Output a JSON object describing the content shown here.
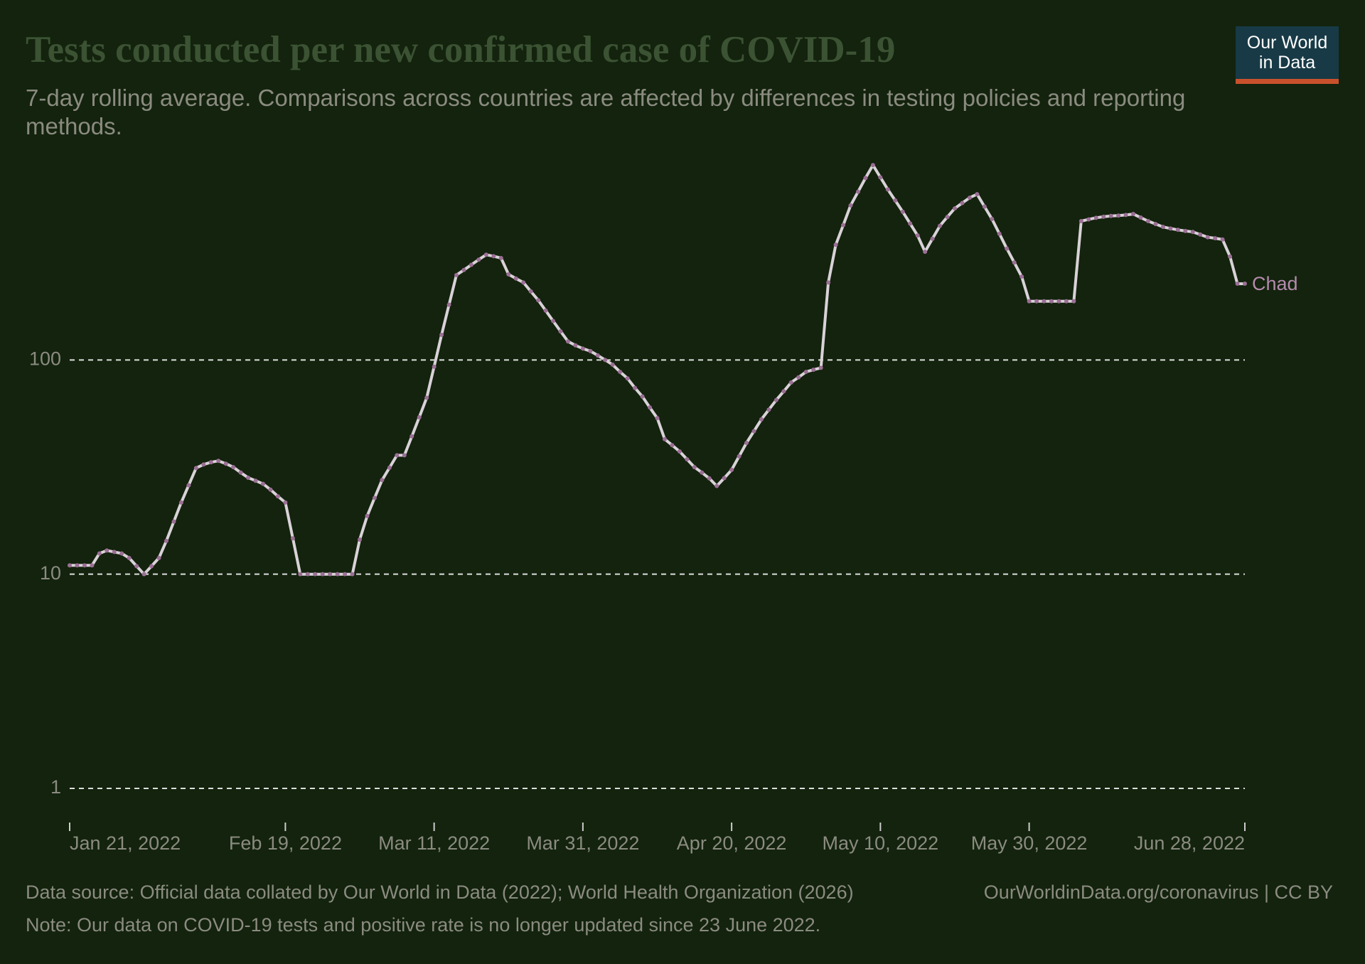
{
  "chart_data": {
    "type": "line",
    "title": "Tests conducted per new confirmed case of COVID-19",
    "subtitle": "7-day rolling average. Comparisons across countries are affected by differences in testing policies and reporting methods.",
    "logo": [
      "Our World",
      "in Data"
    ],
    "source": "Data source: Official data collated by Our World in Data (2022); World Health Organization (2026)",
    "note": "Note: Our data on COVID-19 tests and positive rate is no longer updated since 23 June 2022.",
    "credit": "OurWorldinData.org/coronavirus | CC BY",
    "log_scale": true,
    "grid": true,
    "ylim": [
      1,
      1000
    ],
    "yticks": [
      1,
      10,
      100
    ],
    "xlim": [
      "2022-01-21",
      "2022-06-28"
    ],
    "xticks": [
      {
        "value": "2022-01-21",
        "label": "Jan 21, 2022"
      },
      {
        "value": "2022-02-19",
        "label": "Feb 19, 2022"
      },
      {
        "value": "2022-03-11",
        "label": "Mar 11, 2022"
      },
      {
        "value": "2022-03-31",
        "label": "Mar 31, 2022"
      },
      {
        "value": "2022-04-20",
        "label": "Apr 20, 2022"
      },
      {
        "value": "2022-05-10",
        "label": "May 10, 2022"
      },
      {
        "value": "2022-05-30",
        "label": "May 30, 2022"
      },
      {
        "value": "2022-06-28",
        "label": "Jun 28, 2022"
      }
    ],
    "x": [
      "2022-01-21",
      "2022-01-22",
      "2022-01-23",
      "2022-01-24",
      "2022-01-25",
      "2022-01-26",
      "2022-01-27",
      "2022-01-28",
      "2022-01-29",
      "2022-01-30",
      "2022-01-31",
      "2022-02-01",
      "2022-02-02",
      "2022-02-03",
      "2022-02-04",
      "2022-02-05",
      "2022-02-06",
      "2022-02-07",
      "2022-02-08",
      "2022-02-09",
      "2022-02-10",
      "2022-02-11",
      "2022-02-12",
      "2022-02-13",
      "2022-02-14",
      "2022-02-15",
      "2022-02-16",
      "2022-02-17",
      "2022-02-18",
      "2022-02-19",
      "2022-02-20",
      "2022-02-21",
      "2022-02-22",
      "2022-02-23",
      "2022-02-24",
      "2022-02-25",
      "2022-02-26",
      "2022-02-27",
      "2022-02-28",
      "2022-03-01",
      "2022-03-02",
      "2022-03-03",
      "2022-03-04",
      "2022-03-05",
      "2022-03-06",
      "2022-03-07",
      "2022-03-08",
      "2022-03-09",
      "2022-03-10",
      "2022-03-11",
      "2022-03-12",
      "2022-03-13",
      "2022-03-14",
      "2022-03-15",
      "2022-03-16",
      "2022-03-17",
      "2022-03-18",
      "2022-03-19",
      "2022-03-20",
      "2022-03-21",
      "2022-03-22",
      "2022-03-23",
      "2022-03-24",
      "2022-03-25",
      "2022-03-26",
      "2022-03-27",
      "2022-03-28",
      "2022-03-29",
      "2022-03-30",
      "2022-03-31",
      "2022-04-01",
      "2022-04-02",
      "2022-04-03",
      "2022-04-04",
      "2022-04-05",
      "2022-04-06",
      "2022-04-07",
      "2022-04-08",
      "2022-04-09",
      "2022-04-10",
      "2022-04-11",
      "2022-04-12",
      "2022-04-13",
      "2022-04-14",
      "2022-04-15",
      "2022-04-16",
      "2022-04-17",
      "2022-04-18",
      "2022-04-19",
      "2022-04-20",
      "2022-04-21",
      "2022-04-22",
      "2022-04-23",
      "2022-04-24",
      "2022-04-25",
      "2022-04-26",
      "2022-04-27",
      "2022-04-28",
      "2022-04-29",
      "2022-04-30",
      "2022-05-01",
      "2022-05-02",
      "2022-05-03",
      "2022-05-04",
      "2022-05-05",
      "2022-05-06",
      "2022-05-07",
      "2022-05-08",
      "2022-05-09",
      "2022-05-10",
      "2022-05-11",
      "2022-05-12",
      "2022-05-13",
      "2022-05-14",
      "2022-05-15",
      "2022-05-16",
      "2022-05-17",
      "2022-05-18",
      "2022-05-19",
      "2022-05-20",
      "2022-05-21",
      "2022-05-22",
      "2022-05-23",
      "2022-05-24",
      "2022-05-25",
      "2022-05-26",
      "2022-05-27",
      "2022-05-28",
      "2022-05-29",
      "2022-05-30",
      "2022-05-31",
      "2022-06-01",
      "2022-06-02",
      "2022-06-03",
      "2022-06-04",
      "2022-06-05",
      "2022-06-06",
      "2022-06-07",
      "2022-06-08",
      "2022-06-09",
      "2022-06-10",
      "2022-06-11",
      "2022-06-12",
      "2022-06-13",
      "2022-06-14",
      "2022-06-15",
      "2022-06-16",
      "2022-06-17",
      "2022-06-18",
      "2022-06-19",
      "2022-06-20",
      "2022-06-21",
      "2022-06-22",
      "2022-06-23",
      "2022-06-24",
      "2022-06-25",
      "2022-06-26",
      "2022-06-27",
      "2022-06-28"
    ],
    "series": [
      {
        "name": "Chad",
        "color": "#9b6f95",
        "values": [
          11,
          11,
          11,
          11,
          12.5,
          12.9,
          12.7,
          12.5,
          11.9,
          10.9,
          10,
          10.9,
          11.9,
          14.3,
          17.6,
          21.6,
          26,
          31.3,
          32.5,
          33.3,
          33.8,
          32.8,
          31.6,
          29.8,
          28.2,
          27.3,
          26.4,
          24.8,
          23.1,
          21.6,
          14.7,
          10,
          10,
          10,
          10,
          10,
          10,
          10,
          10,
          14.5,
          18.7,
          22.7,
          27.5,
          31.4,
          35.9,
          35.9,
          44,
          54,
          66.6,
          93,
          131,
          181,
          249,
          263,
          278,
          294,
          310,
          305,
          299,
          251,
          240,
          230,
          209,
          190,
          170,
          152,
          136,
          122,
          117,
          113,
          110,
          105,
          100,
          95,
          88,
          82,
          74,
          67.5,
          60,
          53.5,
          42.7,
          40,
          37.4,
          34.4,
          31.6,
          29.8,
          28,
          25.8,
          28.1,
          30.7,
          35.5,
          41,
          46.5,
          52.8,
          58.6,
          65,
          71.4,
          78.5,
          83,
          88,
          90,
          91.9,
          230,
          345,
          426,
          527,
          610,
          707,
          812,
          712,
          625,
          555,
          492,
          433,
          381,
          320,
          368,
          423,
          465,
          510,
          540,
          572,
          594,
          520,
          455,
          388,
          331,
          285,
          245,
          188,
          188,
          188,
          188,
          188,
          188,
          188,
          445,
          453,
          461,
          466,
          470,
          472,
          475,
          480,
          462,
          445,
          431,
          418,
          411,
          405,
          400,
          396,
          385,
          374,
          370,
          365,
          304,
          227,
          227
        ]
      }
    ]
  }
}
